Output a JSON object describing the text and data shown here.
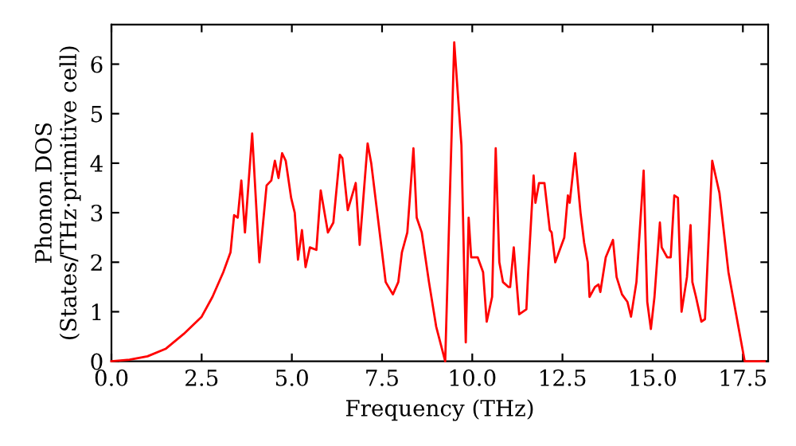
{
  "chart_data": {
    "type": "line",
    "xlabel": "Frequency (THz)",
    "ylabel": "Phonon DOS\n(States/THz·primitive cell)",
    "xlim": [
      0,
      18.2
    ],
    "ylim": [
      0,
      6.8
    ],
    "xticks": [
      {
        "value": 0,
        "label": "0.0"
      },
      {
        "value": 2.5,
        "label": "2.5"
      },
      {
        "value": 5,
        "label": "5.0"
      },
      {
        "value": 7.5,
        "label": "7.5"
      },
      {
        "value": 10,
        "label": "10.0"
      },
      {
        "value": 12.5,
        "label": "12.5"
      },
      {
        "value": 15,
        "label": "15.0"
      },
      {
        "value": 17.5,
        "label": "17.5"
      }
    ],
    "yticks": [
      0,
      1,
      2,
      3,
      4,
      5,
      6
    ],
    "grid": false,
    "legend": false,
    "marker": "none",
    "line_style": "solid",
    "series": [
      {
        "color": "#ff0000",
        "x": [
          0,
          0.5,
          1.0,
          1.5,
          2.0,
          2.5,
          2.8,
          3.1,
          3.3,
          3.4,
          3.5,
          3.6,
          3.7,
          3.9,
          4.1,
          4.3,
          4.43,
          4.53,
          4.63,
          4.73,
          4.83,
          4.98,
          5.08,
          5.17,
          5.28,
          5.38,
          5.5,
          5.68,
          5.8,
          6.0,
          6.15,
          6.33,
          6.4,
          6.55,
          6.77,
          6.88,
          7.1,
          7.2,
          7.6,
          7.8,
          7.95,
          8.05,
          8.2,
          8.37,
          8.46,
          8.6,
          8.8,
          9.0,
          9.25,
          9.5,
          9.7,
          9.82,
          9.9,
          9.97,
          10.15,
          10.3,
          10.4,
          10.55,
          10.65,
          10.75,
          10.85,
          11.0,
          11.05,
          11.15,
          11.3,
          11.5,
          11.55,
          11.7,
          11.75,
          11.85,
          12.0,
          12.15,
          12.2,
          12.3,
          12.55,
          12.65,
          12.7,
          12.85,
          13.0,
          13.1,
          13.2,
          13.25,
          13.4,
          13.5,
          13.55,
          13.7,
          13.9,
          14.0,
          14.15,
          14.3,
          14.4,
          14.55,
          14.75,
          14.85,
          14.95,
          15.05,
          15.2,
          15.25,
          15.4,
          15.5,
          15.6,
          15.7,
          15.8,
          15.95,
          16.05,
          16.1,
          16.2,
          16.35,
          16.45,
          16.65,
          16.85,
          17.1,
          17.3,
          17.55,
          18.1
        ],
        "values": [
          0,
          0.03,
          0.1,
          0.25,
          0.55,
          0.9,
          1.3,
          1.8,
          2.2,
          2.95,
          2.9,
          3.65,
          2.6,
          4.6,
          2.0,
          3.55,
          3.65,
          4.05,
          3.7,
          4.2,
          4.05,
          3.3,
          3.0,
          2.05,
          2.65,
          1.9,
          2.3,
          2.25,
          3.45,
          2.6,
          2.8,
          4.17,
          4.1,
          3.05,
          3.6,
          2.35,
          4.4,
          4.0,
          1.6,
          1.35,
          1.6,
          2.2,
          2.6,
          4.3,
          2.9,
          2.6,
          1.6,
          0.7,
          0,
          6.44,
          4.36,
          0.38,
          2.9,
          2.1,
          2.1,
          1.8,
          0.8,
          1.3,
          4.3,
          2.0,
          1.6,
          1.5,
          1.5,
          2.3,
          0.95,
          1.05,
          1.8,
          3.75,
          3.2,
          3.6,
          3.6,
          2.65,
          2.6,
          2.0,
          2.5,
          3.35,
          3.2,
          4.2,
          3.0,
          2.4,
          2.0,
          1.3,
          1.5,
          1.55,
          1.4,
          2.1,
          2.45,
          1.7,
          1.35,
          1.2,
          0.9,
          1.6,
          3.85,
          1.2,
          0.65,
          1.3,
          2.8,
          2.3,
          2.1,
          2.1,
          3.35,
          3.3,
          1.0,
          1.7,
          2.75,
          1.6,
          1.3,
          0.8,
          0.85,
          4.05,
          3.4,
          1.8,
          1.0,
          0,
          0
        ]
      }
    ]
  }
}
